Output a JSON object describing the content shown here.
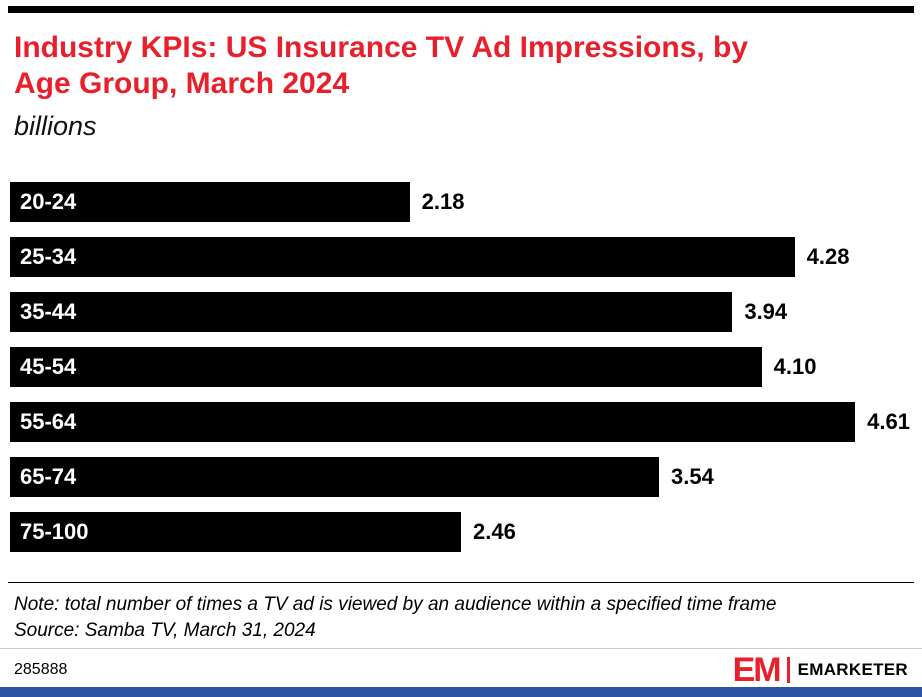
{
  "meta": {
    "accent_red": "#e8202c",
    "top_bar_color": "#000000",
    "bottom_bar_color": "#2b55a2"
  },
  "chart_data": {
    "type": "bar",
    "orientation": "horizontal",
    "title": "Industry KPIs: US Insurance TV Ad Impressions, by\nAge Group, March 2024",
    "subtitle": "billions",
    "categories": [
      "20-24",
      "25-34",
      "35-44",
      "45-54",
      "55-64",
      "65-74",
      "75-100"
    ],
    "values": [
      2.18,
      4.28,
      3.94,
      4.1,
      4.61,
      3.54,
      2.46
    ],
    "value_labels": [
      "2.18",
      "4.28",
      "3.94",
      "4.10",
      "4.61",
      "3.54",
      "2.46"
    ],
    "xlim": [
      0,
      4.92
    ],
    "xlabel": "",
    "ylabel": "",
    "grid": false,
    "legend": false,
    "bar_color": "#000000",
    "category_label_color": "#ffffff",
    "value_label_color": "#000000"
  },
  "footnote": {
    "note": "Note: total number of times a TV ad is viewed by an audience within a specified time frame",
    "source": "Source: Samba TV, March 31, 2024"
  },
  "footer": {
    "chart_id": "285888",
    "logo_em": "EM",
    "logo_text": "EMARKETER"
  }
}
